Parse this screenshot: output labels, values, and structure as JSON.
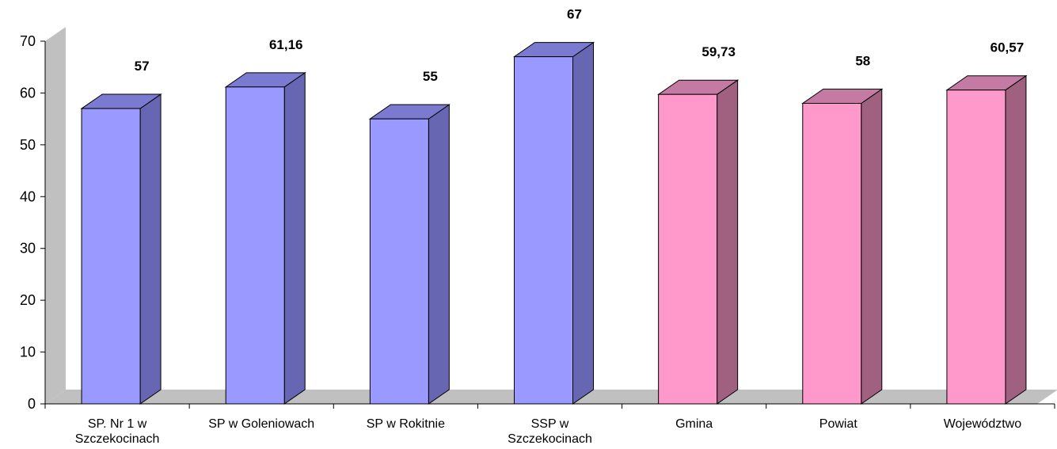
{
  "chart_data": {
    "type": "bar",
    "title": "",
    "xlabel": "",
    "ylabel": "",
    "ylim": [
      0,
      70
    ],
    "yticks": [
      "0",
      "10",
      "20",
      "30",
      "40",
      "50",
      "60",
      "70"
    ],
    "grid": false,
    "legend": "none",
    "style": "3d-columns",
    "categories": [
      [
        "SP. Nr 1 w",
        "Szczekocinach"
      ],
      [
        "SP w Goleniowach"
      ],
      [
        "SP w Rokitnie"
      ],
      [
        "SSP w",
        "Szczekocinach"
      ],
      [
        "Gmina"
      ],
      [
        "Powiat"
      ],
      [
        "Województwo"
      ]
    ],
    "values": [
      57,
      61.16,
      55,
      67,
      59.73,
      58,
      60.57
    ],
    "data_labels": [
      "57",
      "61,16",
      "55",
      "67",
      "59,73",
      "58",
      "60,57"
    ],
    "bar_colors": [
      "#9999ff",
      "#9999ff",
      "#9999ff",
      "#9999ff",
      "#ff99cc",
      "#ff99cc",
      "#ff99cc"
    ],
    "side_colors": [
      "#6666b3",
      "#6666b3",
      "#6666b3",
      "#6666b3",
      "#a0607f",
      "#a0607f",
      "#a0607f"
    ],
    "top_colors": [
      "#7a7ad0",
      "#7a7ad0",
      "#7a7ad0",
      "#7a7ad0",
      "#c47aa2",
      "#c47aa2",
      "#c47aa2"
    ],
    "wall_color": "#c0c0c0"
  }
}
